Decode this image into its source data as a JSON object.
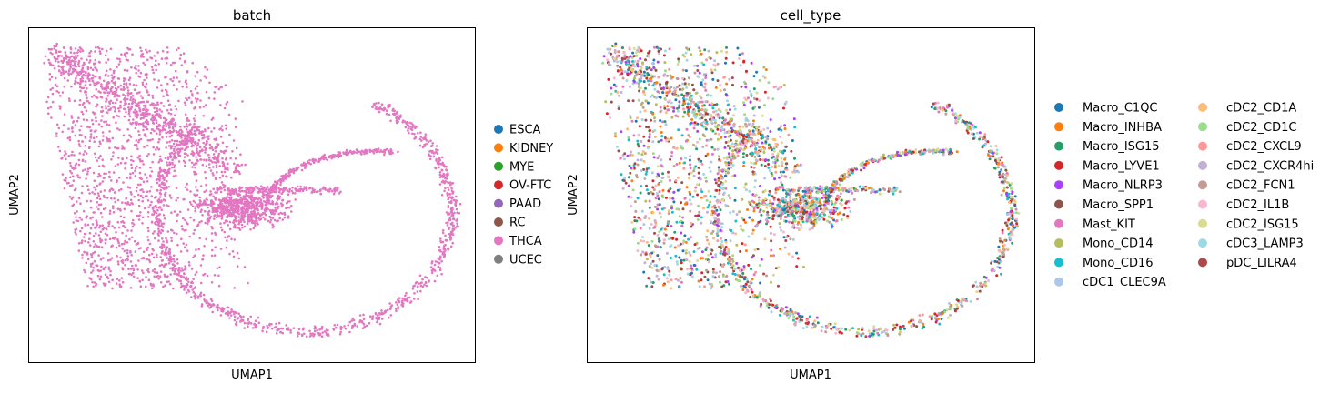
{
  "chart_data": [
    {
      "type": "scatter",
      "title": "batch",
      "xlabel": "UMAP1",
      "ylabel": "UMAP2",
      "xlim": [
        0,
        10
      ],
      "ylim": [
        0,
        10
      ],
      "grid": false,
      "legend_placement": "right",
      "legend_columns": 1,
      "series": [
        {
          "name": "ESCA",
          "color": "#1f77b4",
          "n_points": 0
        },
        {
          "name": "KIDNEY",
          "color": "#ff7f0e",
          "n_points": 0
        },
        {
          "name": "MYE",
          "color": "#2ca02c",
          "n_points": 0
        },
        {
          "name": "OV-FTC",
          "color": "#d62728",
          "n_points": 0
        },
        {
          "name": "PAAD",
          "color": "#9467bd",
          "n_points": 0
        },
        {
          "name": "RC",
          "color": "#8c564b",
          "n_points": 0
        },
        {
          "name": "THCA",
          "color": "#e377c2",
          "n_points": 4000
        },
        {
          "name": "UCEC",
          "color": "#7f7f7f",
          "n_points": 0
        }
      ]
    },
    {
      "type": "scatter",
      "title": "cell_type",
      "xlabel": "UMAP1",
      "ylabel": "UMAP2",
      "xlim": [
        0,
        10
      ],
      "ylim": [
        0,
        10
      ],
      "grid": false,
      "legend_placement": "right",
      "legend_columns": 2,
      "series": [
        {
          "name": "Macro_C1QC",
          "color": "#1f77b4"
        },
        {
          "name": "Macro_INHBA",
          "color": "#ff7f0e"
        },
        {
          "name": "Macro_ISG15",
          "color": "#279e68"
        },
        {
          "name": "Macro_LYVE1",
          "color": "#d62728"
        },
        {
          "name": "Macro_NLRP3",
          "color": "#aa40fc"
        },
        {
          "name": "Macro_SPP1",
          "color": "#8c564b"
        },
        {
          "name": "Mast_KIT",
          "color": "#e377c2"
        },
        {
          "name": "Mono_CD14",
          "color": "#b5bd61"
        },
        {
          "name": "Mono_CD16",
          "color": "#17becf"
        },
        {
          "name": "cDC1_CLEC9A",
          "color": "#aec7e8"
        },
        {
          "name": "cDC2_CD1A",
          "color": "#ffbb78"
        },
        {
          "name": "cDC2_CD1C",
          "color": "#98df8a"
        },
        {
          "name": "cDC2_CXCL9",
          "color": "#ff9896"
        },
        {
          "name": "cDC2_CXCR4hi",
          "color": "#c5b0d5"
        },
        {
          "name": "cDC2_FCN1",
          "color": "#c49c94"
        },
        {
          "name": "cDC2_IL1B",
          "color": "#f7b6d2"
        },
        {
          "name": "cDC2_ISG15",
          "color": "#dbdb8d"
        },
        {
          "name": "cDC3_LAMP3",
          "color": "#9edae5"
        },
        {
          "name": "pDC_LILRA4",
          "color": "#ad494a"
        }
      ]
    }
  ]
}
